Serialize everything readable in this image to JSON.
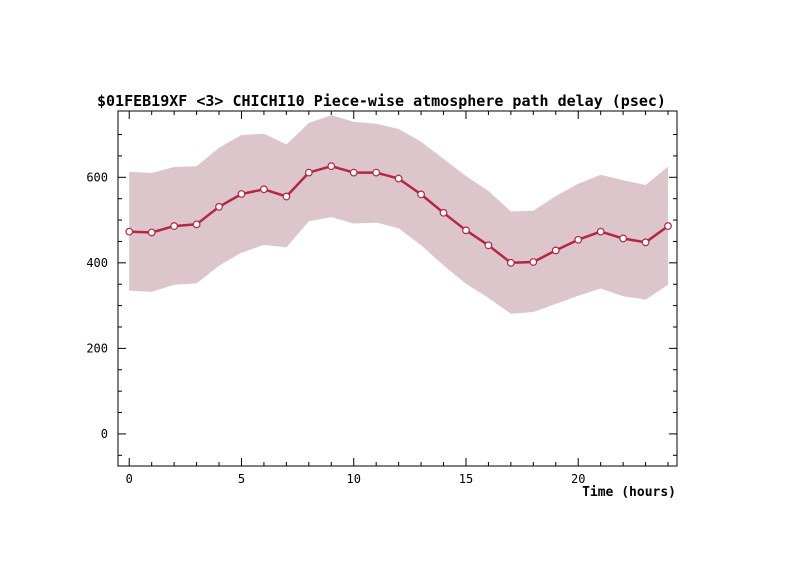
{
  "chart_data": {
    "type": "line",
    "title": "$01FEB19XF <3>  CHICHI10  Piece-wise atmosphere path delay (psec)",
    "xlabel": "Time (hours)",
    "ylabel": "",
    "xlim": [
      -0.5,
      24.4
    ],
    "ylim": [
      -75,
      755
    ],
    "x_major_ticks": [
      0,
      5,
      10,
      15,
      20
    ],
    "x_tick_labels": [
      "0",
      "5",
      "10",
      "15",
      "20"
    ],
    "y_major_ticks": [
      0,
      200,
      400,
      600
    ],
    "y_tick_labels": [
      "0",
      "200",
      "400",
      "600"
    ],
    "grid": false,
    "legend": "none",
    "colors": {
      "line": "#b5263f",
      "marker_fill": "#ffffff",
      "band": "#dcc6cb",
      "axes": "#000000"
    },
    "x": [
      0,
      1,
      2,
      3,
      4,
      5,
      6,
      7,
      8,
      9,
      10,
      11,
      12,
      13,
      14,
      15,
      16,
      17,
      18,
      19,
      20,
      21,
      22,
      23,
      24
    ],
    "series": [
      {
        "values": [
          473,
          471,
          486,
          490,
          531,
          561,
          572,
          555,
          611,
          626,
          611,
          611,
          597,
          560,
          517,
          476,
          441,
          400,
          402,
          429,
          454,
          473,
          457,
          448,
          486
        ]
      }
    ],
    "band": {
      "upper": [
        613,
        610,
        624,
        626,
        669,
        699,
        702,
        677,
        727,
        745,
        730,
        725,
        713,
        683,
        643,
        603,
        568,
        520,
        522,
        556,
        585,
        606,
        593,
        582,
        625
      ],
      "lower": [
        335,
        332,
        349,
        352,
        393,
        424,
        442,
        436,
        497,
        507,
        492,
        494,
        481,
        441,
        394,
        351,
        318,
        281,
        285,
        304,
        323,
        340,
        322,
        314,
        349
      ]
    }
  }
}
